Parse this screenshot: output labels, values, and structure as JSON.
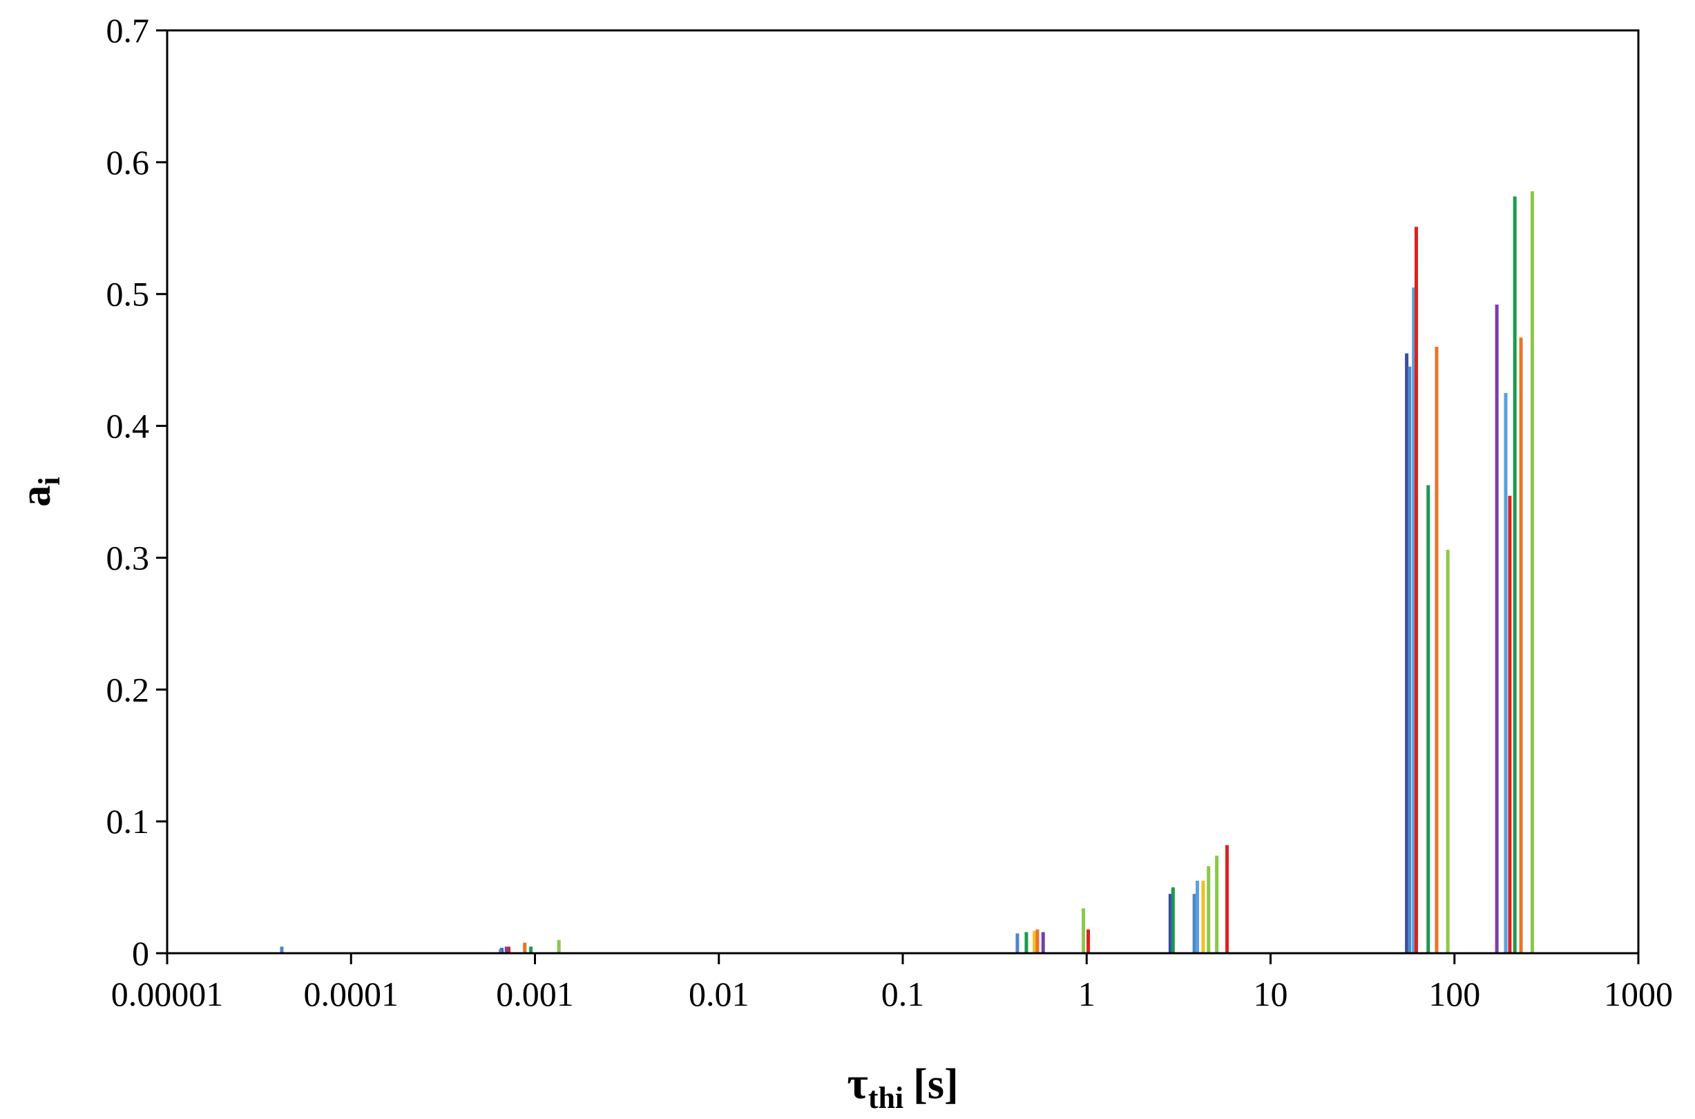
{
  "chart_data": {
    "type": "bar",
    "x_scale": "log",
    "xlim": [
      1e-05,
      1000
    ],
    "ylim": [
      0,
      0.7
    ],
    "x_ticks": [
      "0.00001",
      "0.0001",
      "0.001",
      "0.01",
      "0.1",
      "1",
      "10",
      "100",
      "1000"
    ],
    "y_ticks": [
      "0",
      "0.1",
      "0.2",
      "0.3",
      "0.4",
      "0.5",
      "0.6",
      "0.7"
    ],
    "ylabel": {
      "main": "a",
      "sub": "i"
    },
    "xlabel": {
      "main": "τ",
      "sub": "thi",
      "unit": "[s]"
    },
    "grid": false,
    "legend": "none",
    "series": [
      {
        "color": "#3a4aa8",
        "points": [
          [
            0.00066,
            0.004
          ],
          [
            2.85,
            0.045
          ],
          [
            55,
            0.455
          ]
        ]
      },
      {
        "color": "#4f86c6",
        "points": [
          [
            4.2e-05,
            0.005
          ],
          [
            0.00065,
            0.003
          ],
          [
            0.42,
            0.015
          ],
          [
            3.85,
            0.045
          ],
          [
            57,
            0.445
          ]
        ]
      },
      {
        "color": "#5aa0dc",
        "points": [
          [
            4.0,
            0.055
          ],
          [
            60,
            0.505
          ],
          [
            190,
            0.425
          ]
        ]
      },
      {
        "color": "#f0c020",
        "points": [
          [
            0.52,
            0.017
          ],
          [
            4.3,
            0.055
          ],
          [
            62,
            0.522
          ]
        ]
      },
      {
        "color": "#e8742a",
        "points": [
          [
            0.00088,
            0.008
          ],
          [
            0.54,
            0.018
          ],
          [
            80,
            0.46
          ],
          [
            230,
            0.467
          ]
        ]
      },
      {
        "color": "#e02020",
        "points": [
          [
            0.00072,
            0.005
          ],
          [
            1.02,
            0.018
          ],
          [
            5.8,
            0.082
          ],
          [
            62,
            0.551
          ],
          [
            200,
            0.347
          ]
        ]
      },
      {
        "color": "#7a3ea8",
        "points": [
          [
            0.0007,
            0.005
          ],
          [
            0.58,
            0.016
          ],
          [
            170,
            0.492
          ]
        ]
      },
      {
        "color": "#1a9a50",
        "points": [
          [
            0.00095,
            0.005
          ],
          [
            0.47,
            0.016
          ],
          [
            2.95,
            0.05
          ],
          [
            72,
            0.355
          ],
          [
            213,
            0.574
          ]
        ]
      },
      {
        "color": "#8cc84a",
        "points": [
          [
            0.00135,
            0.01
          ],
          [
            0.96,
            0.034
          ],
          [
            4.6,
            0.066
          ],
          [
            5.1,
            0.074
          ],
          [
            92,
            0.306
          ],
          [
            265,
            0.578
          ]
        ]
      }
    ]
  }
}
